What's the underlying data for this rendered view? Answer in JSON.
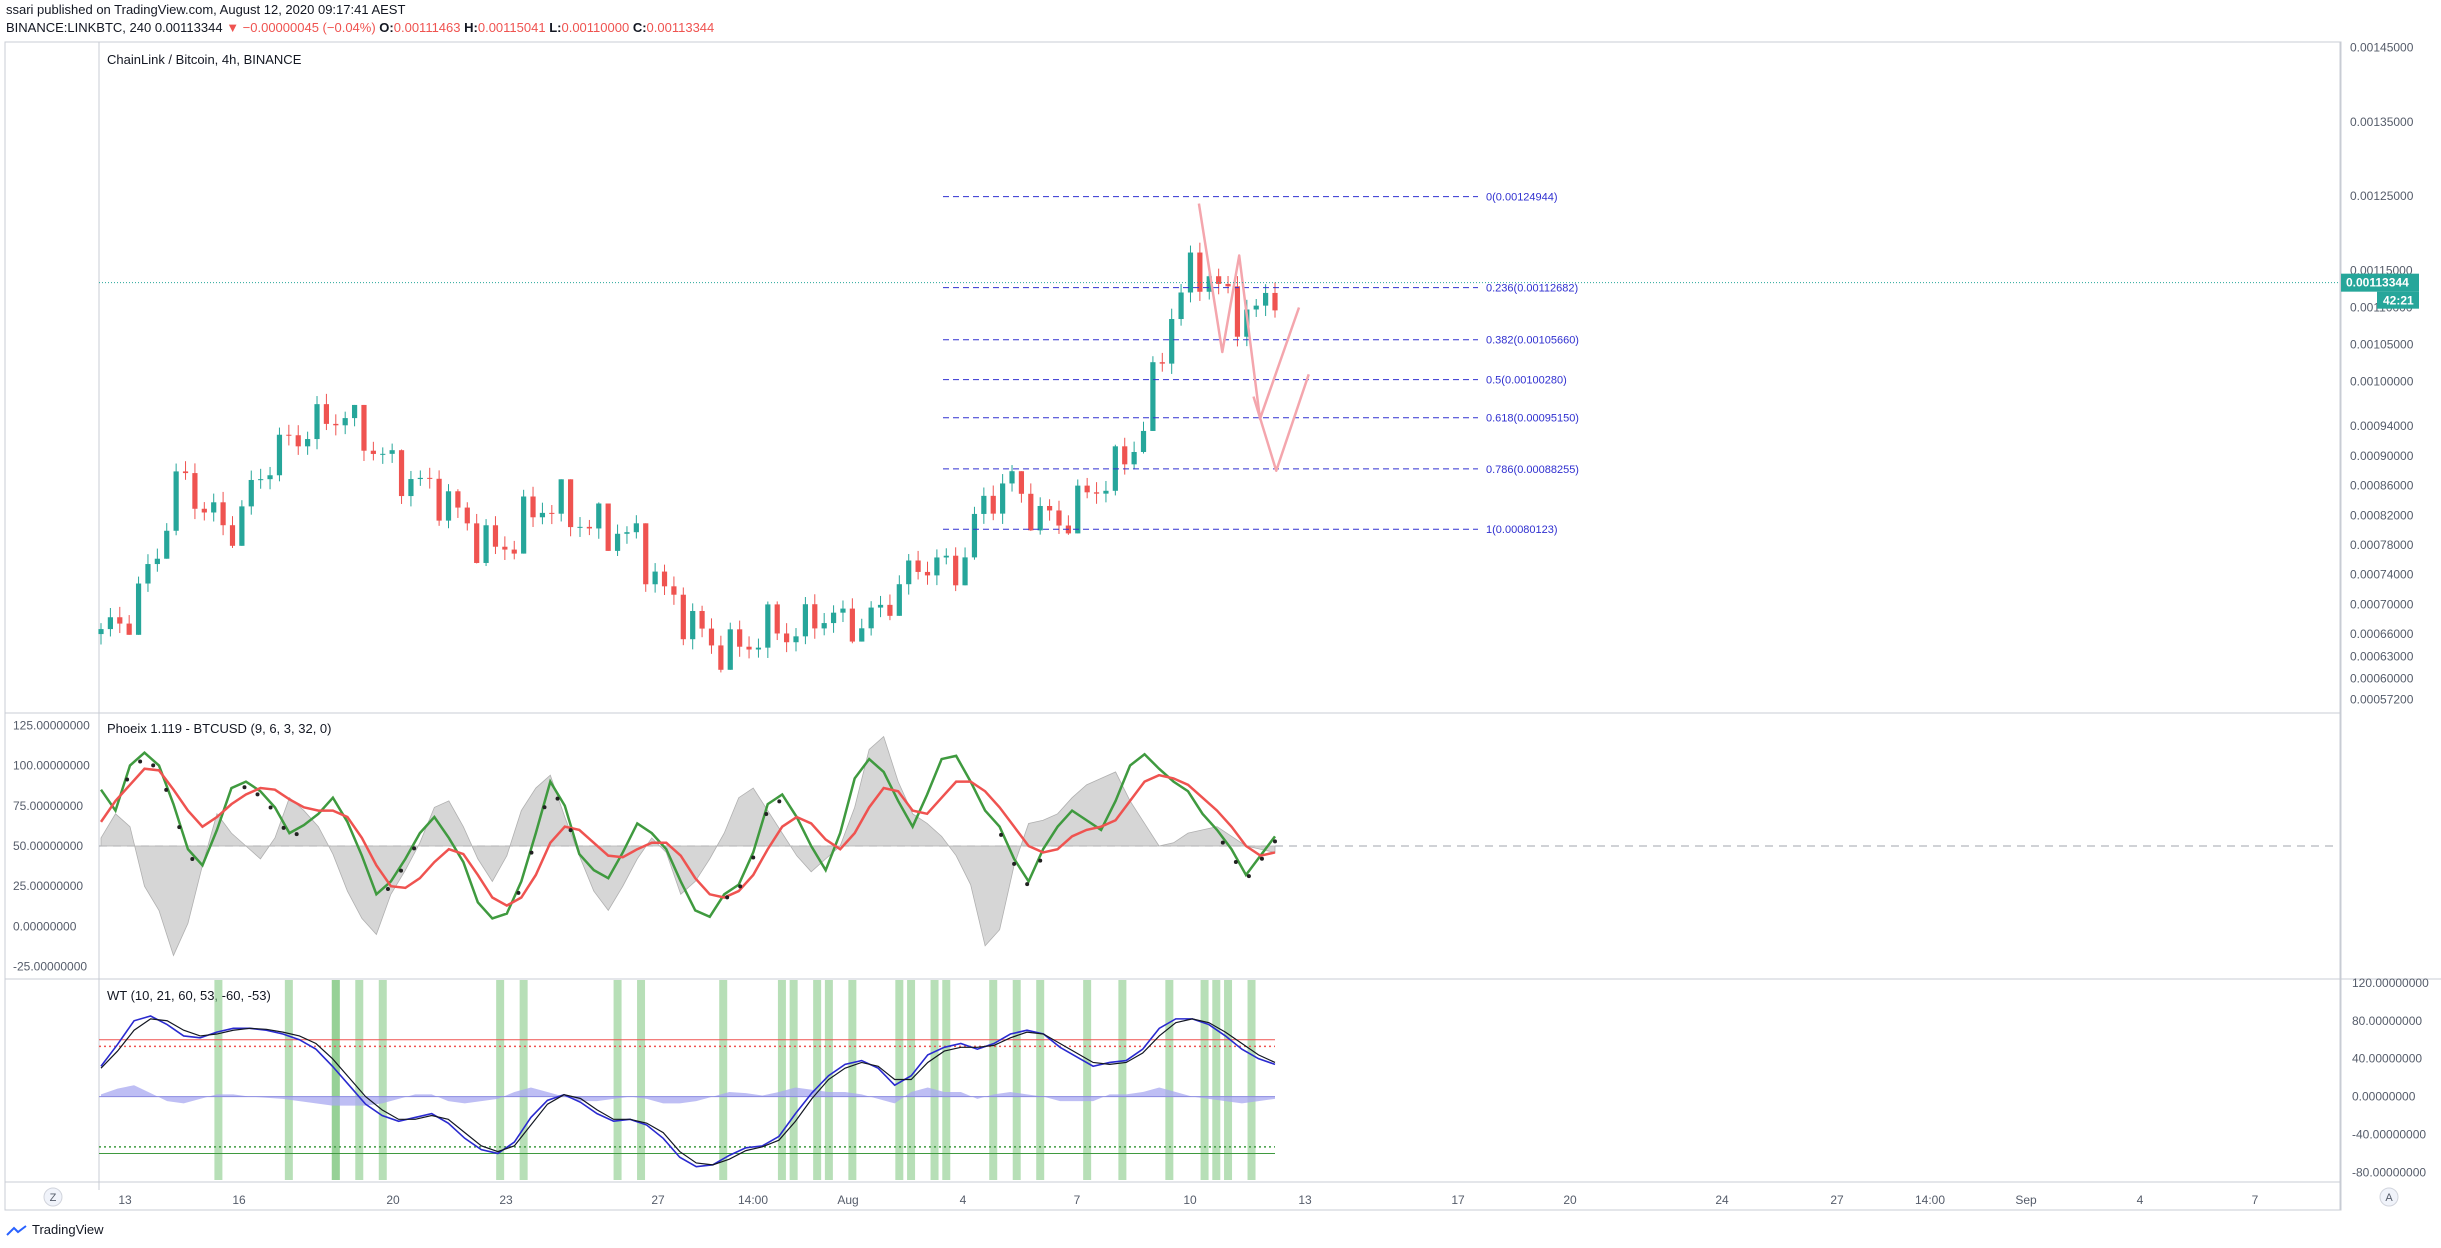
{
  "header": {
    "line1": "ssari published on TradingView.com, August 12, 2020 09:17:41 AEST",
    "symbol": "BINANCE:LINKBTC, 240",
    "last": "0.00113344",
    "change": "▼ −0.00000045 (−0.04%)",
    "o_label": "O:",
    "o_value": "0.00111463",
    "h_label": "H:",
    "h_value": "0.00115041",
    "l_label": "L:",
    "l_value": "0.00110000",
    "c_label": "C:",
    "c_value": "0.00113344"
  },
  "colors": {
    "up": "#26a69a",
    "down": "#ef5350",
    "fib": "#3030d0",
    "current_price_bg": "#26a69a",
    "phoenix_green": "#3f9a3f",
    "phoenix_red": "#ef5350",
    "wt_blue": "#2a2ad0",
    "wt_black": "#131722",
    "wt_bar": "#7cc47c"
  },
  "footer": {
    "brand": "TradingView",
    "icon": "tradingview-logo-icon"
  },
  "buttons": {
    "left": "Z",
    "right": "A"
  },
  "chart_data": [
    {
      "type": "candlestick",
      "title": "ChainLink / Bitcoin, 4h, BINANCE",
      "ylim": [
        0.000555,
        0.001455
      ],
      "y_ticks": [
        "0.00145000",
        "0.00135000",
        "0.00125000",
        "0.00115000",
        "0.00110000",
        "0.00105000",
        "0.00100000",
        "0.00094000",
        "0.00090000",
        "0.00086000",
        "0.00082000",
        "0.00078000",
        "0.00074000",
        "0.00070000",
        "0.00066000",
        "0.00063000",
        "0.00060000",
        "0.00057200"
      ],
      "y_tick_values": [
        0.00145,
        0.00135,
        0.00125,
        0.00115,
        0.0011,
        0.00105,
        0.001,
        0.00094,
        0.0009,
        0.00086,
        0.00082,
        0.00078,
        0.00074,
        0.0007,
        0.00066,
        0.00063,
        0.0006,
        0.000572
      ],
      "x_ticks": [
        "13",
        "16",
        "20",
        "23",
        "27",
        "14:00",
        "Aug",
        "4",
        "7",
        "10",
        "13",
        "17",
        "20",
        "24",
        "27",
        "14:00",
        "Sep",
        "4",
        "7"
      ],
      "current_price": {
        "value": 0.00113344,
        "label": "0.00113344",
        "countdown": "42:21"
      },
      "ohlc_anchors": {
        "close": [
          0.00066,
          0.00068,
          0.00076,
          0.00088,
          0.00082,
          0.0008,
          0.00088,
          0.00092,
          0.00094,
          0.00096,
          0.00092,
          0.00088,
          0.00086,
          0.00084,
          0.00079,
          0.00077,
          0.00082,
          0.00084,
          0.00081,
          0.0008,
          0.00079,
          0.00072,
          0.00068,
          0.00064,
          0.00064,
          0.00067,
          0.00066,
          0.00069,
          0.00067,
          0.00068,
          0.00073,
          0.00076,
          0.00074,
          0.00083,
          0.00087,
          0.00082,
          0.00081,
          0.00085,
          0.00088,
          0.00093,
          0.00108,
          0.00116,
          0.00112,
          0.00108,
          0.00113
        ],
        "wick_high": [
          0.00068,
          0.00072,
          0.00092,
          0.00096,
          0.00088,
          0.00084,
          0.00094,
          0.00097,
          0.00098,
          0.00098,
          0.00094,
          0.00091,
          0.00089,
          0.00087,
          0.00082,
          0.00082,
          0.00086,
          0.00087,
          0.00084,
          0.00083,
          0.00082,
          0.00076,
          0.00071,
          0.00068,
          0.00068,
          0.0007,
          0.0007,
          0.00072,
          0.00071,
          0.00071,
          0.00076,
          0.00078,
          0.00077,
          0.00086,
          0.00089,
          0.00086,
          0.00084,
          0.00088,
          0.00091,
          0.00098,
          0.00117,
          0.00125,
          0.00121,
          0.00113,
          0.00116
        ],
        "wick_low": [
          0.00065,
          0.00066,
          0.00074,
          0.00081,
          0.00078,
          0.00078,
          0.00084,
          0.00088,
          0.0009,
          0.00092,
          0.00087,
          0.00084,
          0.00083,
          0.0008,
          0.00076,
          0.00075,
          0.00078,
          0.0008,
          0.00078,
          0.00078,
          0.00075,
          0.00068,
          0.00061,
          0.00061,
          0.00062,
          0.00063,
          0.00064,
          0.00065,
          0.00065,
          0.00066,
          0.0007,
          0.00072,
          0.00072,
          0.00078,
          0.00082,
          0.0008,
          0.00079,
          0.00082,
          0.00085,
          0.0009,
          0.001,
          0.00104,
          0.00105,
          0.00104,
          0.00108
        ]
      },
      "fibonacci": [
        {
          "label": "0(0.00124944)",
          "value": 0.00124944
        },
        {
          "label": "0.236(0.00112682)",
          "value": 0.00112682
        },
        {
          "label": "0.382(0.00105660)",
          "value": 0.0010566
        },
        {
          "label": "0.5(0.00100280)",
          "value": 0.0010028
        },
        {
          "label": "0.618(0.00095150)",
          "value": 0.0009515
        },
        {
          "label": "0.786(0.00088255)",
          "value": 0.00088255
        },
        {
          "label": "1(0.00080123)",
          "value": 0.00080123
        }
      ],
      "projection_paths": [
        [
          [
            0.06,
            0.00124
          ],
          [
            0.42,
            0.00104
          ],
          [
            0.68,
            0.00117
          ],
          [
            1.0,
            0.00095
          ],
          [
            1.6,
            0.0011
          ]
        ],
        [
          [
            0.9,
            0.00098
          ],
          [
            1.25,
            0.00088
          ],
          [
            1.75,
            0.00101
          ]
        ]
      ]
    },
    {
      "type": "line",
      "title": "Phoeix 1.119 - BTCUSD (9, 6, 3, 32, 0)",
      "ylim": [
        -32,
        132
      ],
      "y_ticks": [
        "125.00000000",
        "100.00000000",
        "75.00000000",
        "50.00000000",
        "25.00000000",
        "0.00000000",
        "-25.00000000"
      ],
      "y_tick_values": [
        125,
        100,
        75,
        50,
        25,
        0,
        -25
      ],
      "reference_line": 50,
      "series": [
        {
          "role": "green",
          "values": [
            85,
            72,
            100,
            108,
            100,
            76,
            48,
            38,
            60,
            86,
            90,
            84,
            74,
            58,
            63,
            70,
            80,
            65,
            44,
            20,
            28,
            42,
            58,
            68,
            55,
            40,
            15,
            5,
            8,
            28,
            58,
            90,
            75,
            45,
            35,
            30,
            46,
            64,
            58,
            48,
            28,
            10,
            6,
            20,
            26,
            46,
            76,
            82,
            68,
            50,
            35,
            58,
            92,
            104,
            96,
            78,
            62,
            82,
            104,
            106,
            90,
            72,
            62,
            42,
            28,
            48,
            62,
            72,
            66,
            60,
            78,
            100,
            107,
            98,
            90,
            84,
            70,
            60,
            48,
            32,
            44,
            56
          ]
        },
        {
          "role": "red",
          "values": [
            65,
            78,
            88,
            98,
            97,
            85,
            72,
            62,
            68,
            76,
            82,
            86,
            85,
            79,
            74,
            72,
            72,
            68,
            55,
            38,
            25,
            24,
            30,
            40,
            48,
            45,
            32,
            18,
            13,
            18,
            32,
            52,
            62,
            60,
            52,
            44,
            43,
            48,
            52,
            52,
            44,
            30,
            20,
            18,
            22,
            32,
            48,
            62,
            68,
            64,
            54,
            48,
            58,
            74,
            86,
            84,
            72,
            70,
            80,
            90,
            90,
            84,
            74,
            62,
            50,
            46,
            48,
            56,
            60,
            62,
            66,
            78,
            90,
            94,
            92,
            88,
            80,
            72,
            62,
            50,
            44,
            46
          ]
        },
        {
          "role": "cloud",
          "values": [
            55,
            70,
            62,
            25,
            10,
            -18,
            2,
            38,
            70,
            58,
            50,
            42,
            55,
            80,
            72,
            62,
            45,
            22,
            5,
            -5,
            20,
            35,
            52,
            74,
            78,
            62,
            42,
            28,
            44,
            72,
            86,
            94,
            68,
            44,
            22,
            10,
            25,
            42,
            55,
            46,
            20,
            28,
            42,
            58,
            80,
            86,
            72,
            58,
            44,
            34,
            42,
            50,
            74,
            110,
            118,
            90,
            70,
            64,
            56,
            44,
            26,
            -12,
            -2,
            38,
            64,
            66,
            70,
            80,
            88,
            92,
            96,
            78,
            64,
            50,
            52,
            58,
            60,
            62,
            56,
            50,
            48,
            46
          ]
        }
      ],
      "dot_segments": [
        [
          2,
          7
        ],
        [
          11,
          15
        ],
        [
          22,
          24
        ],
        [
          32,
          36
        ],
        [
          48,
          52
        ],
        [
          69,
          72
        ],
        [
          86,
          90
        ]
      ]
    },
    {
      "type": "line",
      "title": "WT (10, 21, 60, 53, -60, -53)",
      "ylim": [
        -88,
        123
      ],
      "y_ticks": [
        "120.00000000",
        "80.00000000",
        "40.00000000",
        "0.00000000",
        "-40.00000000",
        "-80.00000000"
      ],
      "y_tick_values": [
        120,
        80,
        40,
        0,
        -40,
        -80
      ],
      "levels": [
        60,
        53,
        -53,
        -60
      ],
      "series": [
        {
          "role": "wt1",
          "values": [
            32,
            55,
            80,
            85,
            76,
            64,
            62,
            68,
            72,
            72,
            70,
            66,
            60,
            50,
            32,
            12,
            -8,
            -20,
            -26,
            -22,
            -18,
            -28,
            -44,
            -56,
            -60,
            -48,
            -22,
            -4,
            2,
            -6,
            -18,
            -26,
            -24,
            -30,
            -44,
            -64,
            -74,
            -72,
            -62,
            -54,
            -52,
            -42,
            -18,
            4,
            22,
            34,
            38,
            30,
            12,
            22,
            44,
            52,
            56,
            50,
            56,
            66,
            70,
            66,
            52,
            42,
            32,
            36,
            38,
            50,
            72,
            82,
            82,
            76,
            64,
            50,
            40,
            34
          ]
        },
        {
          "role": "wt2",
          "values": [
            30,
            48,
            70,
            82,
            80,
            70,
            64,
            66,
            70,
            72,
            71,
            68,
            64,
            56,
            40,
            20,
            0,
            -14,
            -24,
            -24,
            -20,
            -24,
            -38,
            -52,
            -58,
            -52,
            -30,
            -8,
            2,
            -2,
            -14,
            -24,
            -24,
            -28,
            -38,
            -58,
            -70,
            -72,
            -66,
            -57,
            -53,
            -46,
            -26,
            -2,
            18,
            30,
            36,
            32,
            18,
            18,
            36,
            48,
            52,
            52,
            54,
            62,
            68,
            66,
            56,
            46,
            36,
            34,
            36,
            46,
            64,
            78,
            82,
            78,
            68,
            56,
            44,
            36
          ]
        }
      ],
      "signal_bars": [
        0.1,
        0.16,
        0.2,
        0.22,
        0.24,
        0.34,
        0.36,
        0.44,
        0.46,
        0.53,
        0.58,
        0.59,
        0.61,
        0.62,
        0.64,
        0.68,
        0.69,
        0.71,
        0.72,
        0.76,
        0.78,
        0.8,
        0.84,
        0.87,
        0.91,
        0.95,
        0.96,
        0.94,
        0.2,
        0.98
      ]
    }
  ]
}
